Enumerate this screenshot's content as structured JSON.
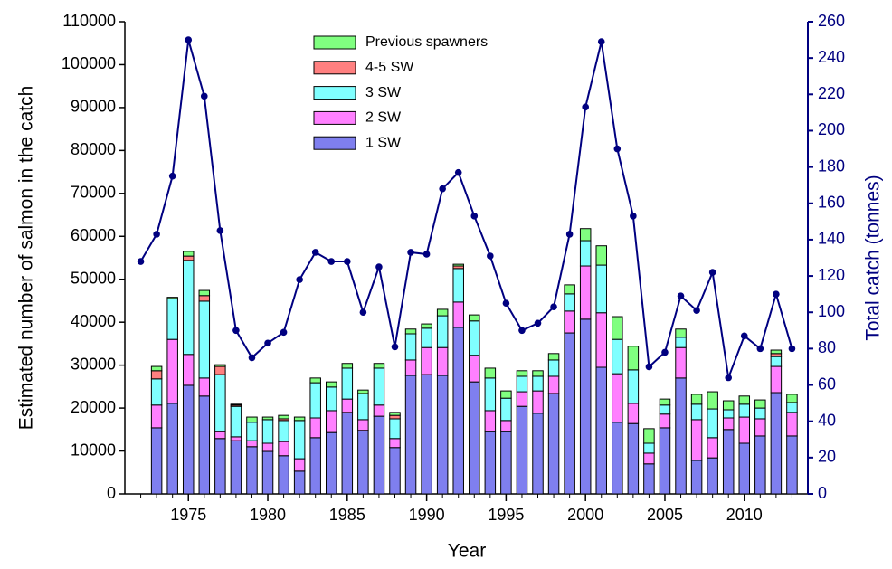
{
  "chart_data": {
    "type": "bar",
    "stacked": true,
    "x_label": "Year",
    "y_label": "Estimated number of salmon in the catch",
    "y2_label": "Total catch (tonnes)",
    "x": [
      1972,
      1973,
      1974,
      1975,
      1976,
      1977,
      1978,
      1979,
      1980,
      1981,
      1982,
      1983,
      1984,
      1985,
      1986,
      1987,
      1988,
      1989,
      1990,
      1991,
      1992,
      1993,
      1994,
      1995,
      1996,
      1997,
      1998,
      1999,
      2000,
      2001,
      2002,
      2003,
      2004,
      2005,
      2006,
      2007,
      2008,
      2009,
      2010,
      2011,
      2012,
      2013
    ],
    "xlim": [
      1971,
      2014
    ],
    "xticks": [
      1975,
      1980,
      1985,
      1990,
      1995,
      2000,
      2005,
      2010
    ],
    "ylim": [
      0,
      110000
    ],
    "yticks": [
      0,
      10000,
      20000,
      30000,
      40000,
      50000,
      60000,
      70000,
      80000,
      90000,
      100000,
      110000
    ],
    "y2lim": [
      0,
      260
    ],
    "y2ticks": [
      0,
      20,
      40,
      60,
      80,
      100,
      120,
      140,
      160,
      180,
      200,
      220,
      240,
      260
    ],
    "y2_color": "#000080",
    "series": [
      {
        "name": "1 SW",
        "color": "#7f7fef",
        "values": [
          null,
          15400,
          21100,
          25300,
          22800,
          12900,
          12400,
          11000,
          9900,
          8900,
          5300,
          13100,
          14300,
          19000,
          14800,
          18100,
          10800,
          27600,
          27800,
          27600,
          38800,
          26100,
          14500,
          14500,
          20400,
          18800,
          23400,
          37500,
          40700,
          29500,
          16700,
          16400,
          7000,
          15400,
          27000,
          7800,
          8400,
          15000,
          11800,
          13500,
          23600,
          13500
        ]
      },
      {
        "name": "2 SW",
        "color": "#ff80ff",
        "values": [
          null,
          5300,
          14900,
          7200,
          4200,
          1600,
          900,
          1400,
          1900,
          3300,
          2900,
          4600,
          5100,
          3100,
          2500,
          2600,
          2100,
          3600,
          6300,
          6500,
          5900,
          6200,
          4900,
          2600,
          3400,
          5200,
          4000,
          5100,
          12400,
          12700,
          11300,
          4700,
          2500,
          3200,
          7100,
          9500,
          4700,
          2700,
          6100,
          4000,
          6100,
          5500
        ]
      },
      {
        "name": "3 SW",
        "color": "#80ffff",
        "values": [
          null,
          6100,
          9500,
          21900,
          17900,
          13300,
          7100,
          4300,
          5500,
          4900,
          8900,
          8200,
          5500,
          7200,
          6100,
          8600,
          4600,
          6100,
          4500,
          7400,
          7800,
          8000,
          7600,
          5200,
          3600,
          3400,
          3800,
          4000,
          5900,
          11100,
          8000,
          7800,
          2300,
          2100,
          2400,
          3600,
          6700,
          1900,
          3000,
          2500,
          2300,
          2300
        ]
      },
      {
        "name": "4-5 SW",
        "color": "#ff8080",
        "values": [
          null,
          1900,
          0,
          1000,
          1300,
          1900,
          300,
          0,
          0,
          400,
          0,
          0,
          0,
          0,
          0,
          0,
          800,
          0,
          0,
          0,
          600,
          0,
          0,
          0,
          0,
          0,
          0,
          0,
          0,
          0,
          0,
          0,
          0,
          0,
          0,
          0,
          0,
          0,
          0,
          0,
          700,
          0
        ]
      },
      {
        "name": "Previous spawners",
        "color": "#80ff80",
        "values": [
          null,
          1000,
          300,
          1100,
          1200,
          400,
          200,
          1200,
          600,
          800,
          800,
          1100,
          1200,
          1100,
          800,
          1100,
          700,
          1100,
          1000,
          1500,
          400,
          1400,
          2300,
          1700,
          1300,
          1300,
          1500,
          2100,
          2800,
          4500,
          5300,
          5500,
          3400,
          1400,
          1900,
          2300,
          4000,
          2100,
          1900,
          1900,
          800,
          1900
        ]
      },
      {
        "type": "line",
        "axis": "y2",
        "color": "#000080",
        "values": [
          128,
          143,
          175,
          250,
          219,
          145,
          90,
          75,
          83,
          89,
          118,
          133,
          128,
          128,
          100,
          125,
          81,
          133,
          132,
          168,
          177,
          153,
          131,
          105,
          90,
          94,
          103,
          143,
          213,
          249,
          190,
          153,
          70,
          78,
          109,
          101,
          122,
          64,
          87,
          80,
          110,
          80
        ]
      }
    ]
  }
}
